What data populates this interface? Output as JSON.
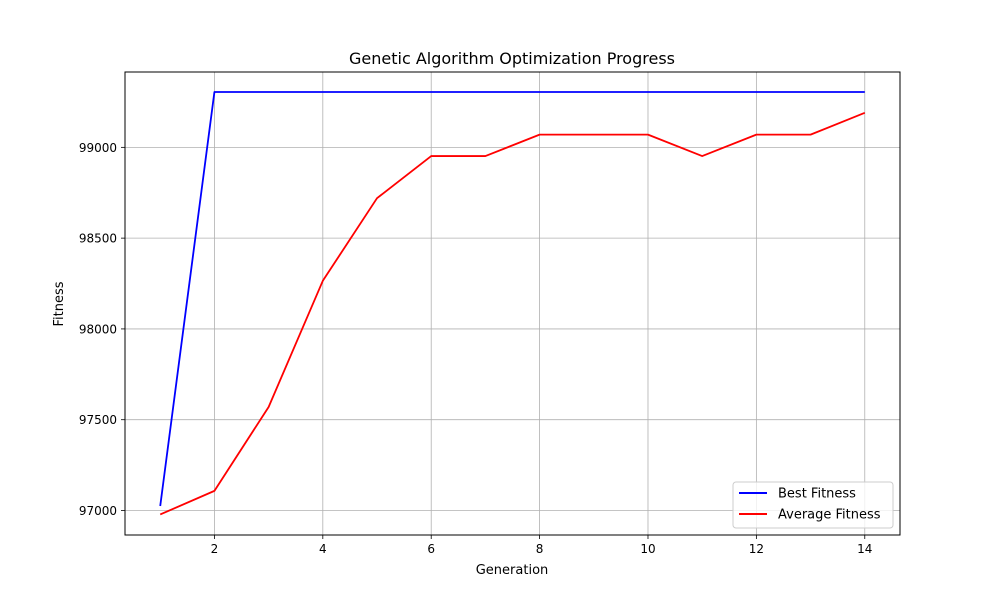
{
  "chart_data": {
    "type": "line",
    "title": "Genetic Algorithm Optimization Progress",
    "xlabel": "Generation",
    "ylabel": "Fitness",
    "xlim": [
      0.35,
      14.65
    ],
    "ylim": [
      96865,
      99415
    ],
    "xticks": [
      2,
      4,
      6,
      8,
      10,
      12,
      14
    ],
    "yticks": [
      97000,
      97500,
      98000,
      98500,
      99000
    ],
    "grid": true,
    "legend_position": "bottom-right",
    "series": [
      {
        "name": "Best Fitness",
        "color": "#0000ff",
        "x": [
          1,
          2,
          3,
          4,
          5,
          6,
          7,
          8,
          9,
          10,
          11,
          12,
          13,
          14
        ],
        "y": [
          97025,
          99305,
          99305,
          99305,
          99305,
          99305,
          99305,
          99305,
          99305,
          99305,
          99305,
          99305,
          99305,
          99305
        ]
      },
      {
        "name": "Average Fitness",
        "color": "#ff0000",
        "x": [
          1,
          2,
          3,
          4,
          5,
          6,
          7,
          8,
          9,
          10,
          11,
          12,
          13,
          14
        ],
        "y": [
          96978,
          97108,
          97570,
          98265,
          98720,
          98952,
          98952,
          99070,
          99070,
          99070,
          98952,
          99070,
          99070,
          99190
        ]
      }
    ]
  }
}
